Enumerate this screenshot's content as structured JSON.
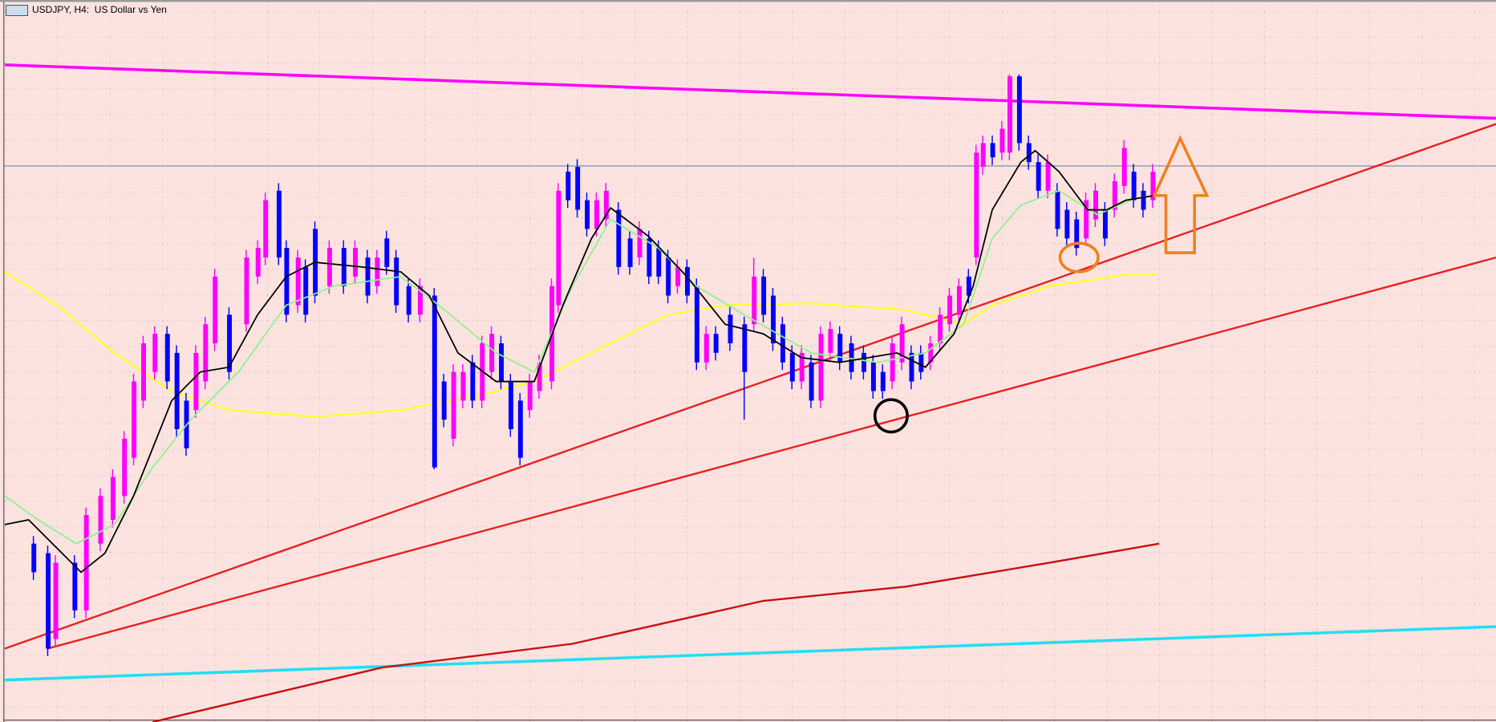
{
  "window": {
    "title": "USDJPY, H4:  US Dollar vs Yen"
  }
}
